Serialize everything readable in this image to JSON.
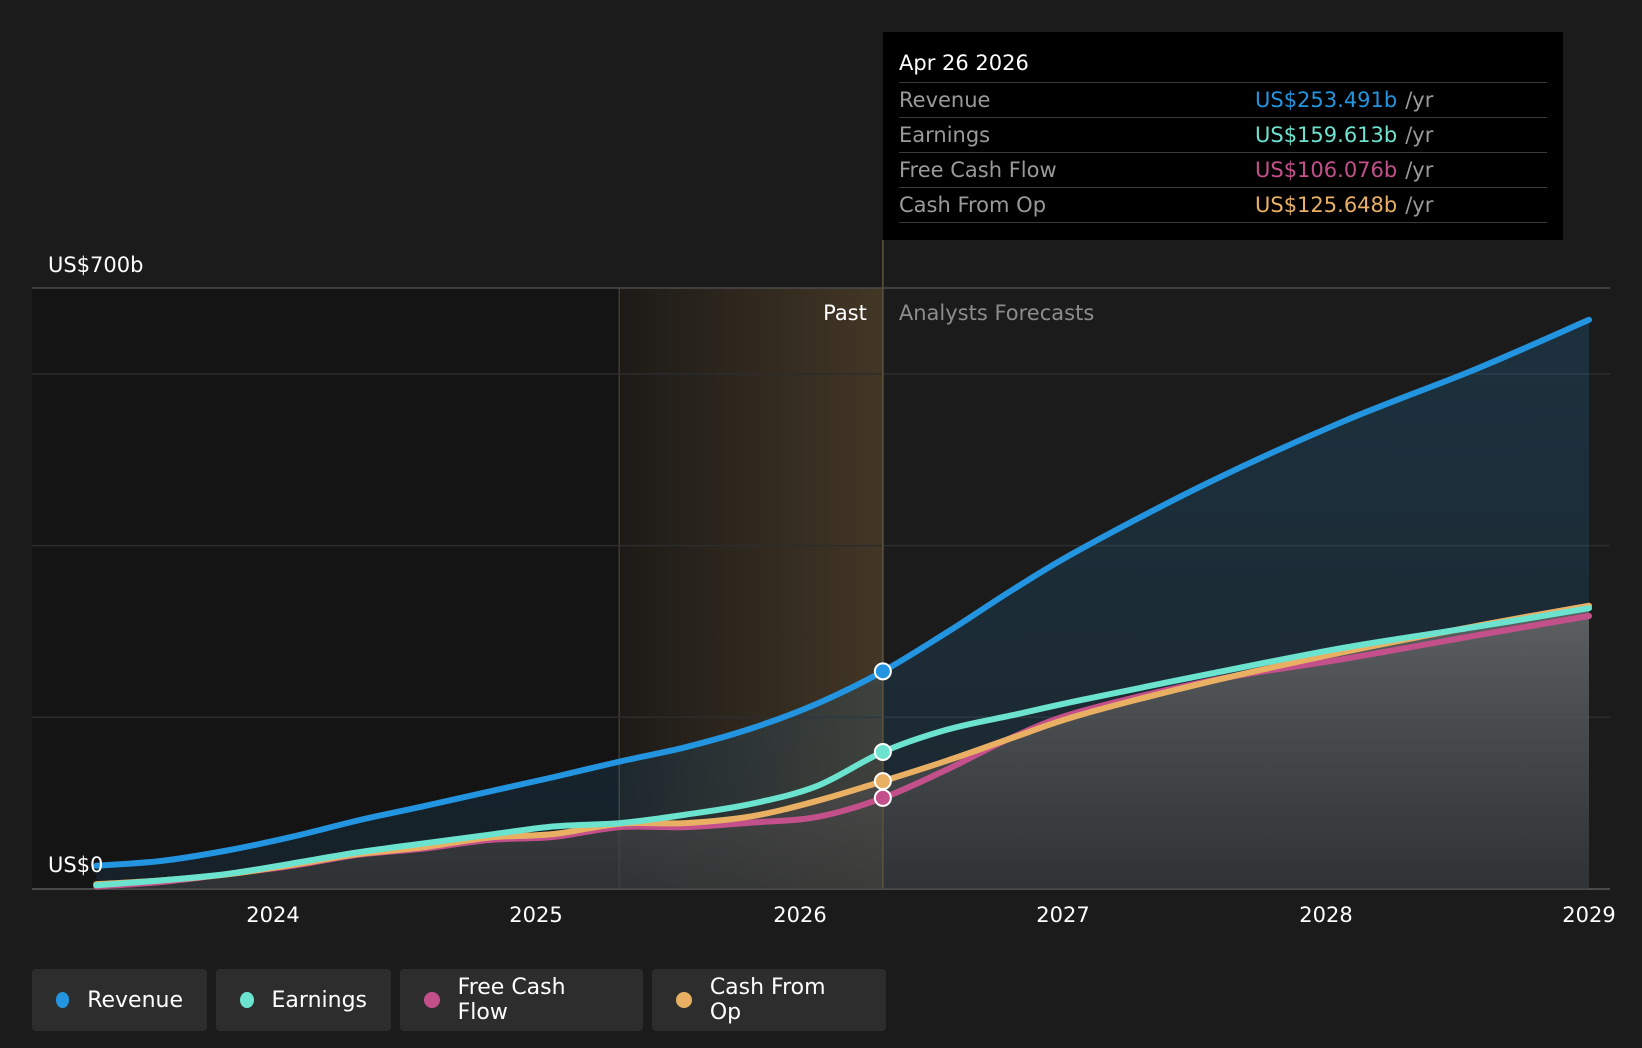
{
  "colors": {
    "revenue": "#2394df",
    "earnings": "#6ce3cf",
    "free_cash_flow": "#c4508b",
    "cash_from_op": "#e9b064",
    "background": "#1b1b1b",
    "past_highlight": "#e9b064"
  },
  "tooltip": {
    "date": "Apr 26 2026",
    "rows": [
      {
        "label": "Revenue",
        "value": "US$253.491b",
        "unit": "/yr",
        "color": "#2394df"
      },
      {
        "label": "Earnings",
        "value": "US$159.613b",
        "unit": "/yr",
        "color": "#6ce3cf"
      },
      {
        "label": "Free Cash Flow",
        "value": "US$106.076b",
        "unit": "/yr",
        "color": "#c4508b"
      },
      {
        "label": "Cash From Op",
        "value": "US$125.648b",
        "unit": "/yr",
        "color": "#e9b064"
      }
    ]
  },
  "legend": [
    {
      "label": "Revenue",
      "color": "#2394df"
    },
    {
      "label": "Earnings",
      "color": "#6ce3cf"
    },
    {
      "label": "Free Cash Flow",
      "color": "#c4508b"
    },
    {
      "label": "Cash From Op",
      "color": "#e9b064"
    }
  ],
  "chart_data": {
    "type": "line",
    "title": "",
    "xlabel": "",
    "ylabel": "",
    "y_unit": "US$ billions",
    "ylim": [
      0,
      700
    ],
    "xlim": [
      "2023-01-01",
      "2029-01-01"
    ],
    "grid": true,
    "y_tick_labels": [
      {
        "value": 700,
        "label": "US$700b"
      },
      {
        "value": 0,
        "label": "US$0"
      }
    ],
    "x_ticks": [
      "2024",
      "2025",
      "2026",
      "2027",
      "2028",
      "2029"
    ],
    "divider": {
      "date": "2026-04-26",
      "past_label": "Past",
      "forecast_label": "Analysts Forecasts"
    },
    "past_highlight_start": "2025-04-26",
    "series": [
      {
        "name": "Revenue",
        "key": "revenue",
        "points": [
          [
            "2023-04-30",
            27.0
          ],
          [
            "2023-07-30",
            32.7
          ],
          [
            "2023-10-29",
            44.9
          ],
          [
            "2024-01-28",
            60.9
          ],
          [
            "2024-04-28",
            79.8
          ],
          [
            "2024-07-28",
            96.3
          ],
          [
            "2024-10-27",
            113.3
          ],
          [
            "2025-01-26",
            130.5
          ],
          [
            "2025-04-27",
            148.5
          ],
          [
            "2025-07-27",
            165.2
          ],
          [
            "2025-10-26",
            187.1
          ],
          [
            "2026-01-25",
            215.9
          ],
          [
            "2026-04-26",
            253.5
          ],
          [
            "2026-07-26",
            300.0
          ],
          [
            "2026-10-26",
            350.0
          ],
          [
            "2027-01-26",
            396.0
          ],
          [
            "2027-07-26",
            475.0
          ],
          [
            "2028-01-26",
            545.0
          ],
          [
            "2028-07-26",
            605.0
          ],
          [
            "2029-01-01",
            663.0
          ]
        ]
      },
      {
        "name": "Earnings",
        "key": "earnings",
        "points": [
          [
            "2023-04-30",
            4.4
          ],
          [
            "2023-07-30",
            10.0
          ],
          [
            "2023-10-29",
            17.5
          ],
          [
            "2024-01-28",
            29.8
          ],
          [
            "2024-04-28",
            42.6
          ],
          [
            "2024-07-28",
            53.0
          ],
          [
            "2024-10-27",
            63.1
          ],
          [
            "2025-01-26",
            72.9
          ],
          [
            "2025-04-27",
            76.8
          ],
          [
            "2025-07-27",
            86.6
          ],
          [
            "2025-10-26",
            99.2
          ],
          [
            "2026-01-25",
            120.1
          ],
          [
            "2026-04-26",
            159.6
          ],
          [
            "2026-07-26",
            186.0
          ],
          [
            "2026-10-26",
            203.0
          ],
          [
            "2027-01-26",
            220.0
          ],
          [
            "2027-07-26",
            251.0
          ],
          [
            "2028-01-26",
            281.0
          ],
          [
            "2028-07-26",
            305.0
          ],
          [
            "2029-01-01",
            327.0
          ]
        ]
      },
      {
        "name": "Free Cash Flow",
        "key": "free_cash_flow",
        "points": [
          [
            "2023-04-30",
            2.9
          ],
          [
            "2023-07-30",
            8.2
          ],
          [
            "2023-10-29",
            17.3
          ],
          [
            "2024-01-28",
            27.0
          ],
          [
            "2024-04-28",
            39.8
          ],
          [
            "2024-07-28",
            46.9
          ],
          [
            "2024-10-27",
            57.1
          ],
          [
            "2025-01-26",
            60.7
          ],
          [
            "2025-04-27",
            72.1
          ],
          [
            "2025-07-27",
            72.1
          ],
          [
            "2025-10-26",
            77.3
          ],
          [
            "2026-01-25",
            84.0
          ],
          [
            "2026-04-26",
            106.1
          ],
          [
            "2026-07-26",
            140.0
          ],
          [
            "2026-10-26",
            178.0
          ],
          [
            "2027-01-26",
            207.0
          ],
          [
            "2027-07-26",
            243.0
          ],
          [
            "2028-01-26",
            268.0
          ],
          [
            "2028-07-26",
            295.0
          ],
          [
            "2029-01-01",
            318.0
          ]
        ]
      },
      {
        "name": "Cash From Op",
        "key": "cash_from_op",
        "points": [
          [
            "2023-04-30",
            5.6
          ],
          [
            "2023-07-30",
            10.0
          ],
          [
            "2023-10-29",
            17.0
          ],
          [
            "2024-01-28",
            28.1
          ],
          [
            "2024-04-28",
            40.5
          ],
          [
            "2024-07-28",
            48.6
          ],
          [
            "2024-10-27",
            59.9
          ],
          [
            "2025-01-26",
            64.1
          ],
          [
            "2025-04-27",
            76.1
          ],
          [
            "2025-07-27",
            76.8
          ],
          [
            "2025-10-26",
            84.7
          ],
          [
            "2026-01-25",
            102.7
          ],
          [
            "2026-04-26",
            125.6
          ],
          [
            "2026-07-26",
            150.0
          ],
          [
            "2026-10-26",
            177.0
          ],
          [
            "2027-01-26",
            203.0
          ],
          [
            "2027-07-26",
            242.0
          ],
          [
            "2028-01-26",
            276.0
          ],
          [
            "2028-07-26",
            306.0
          ],
          [
            "2029-01-01",
            330.0
          ]
        ]
      }
    ]
  }
}
